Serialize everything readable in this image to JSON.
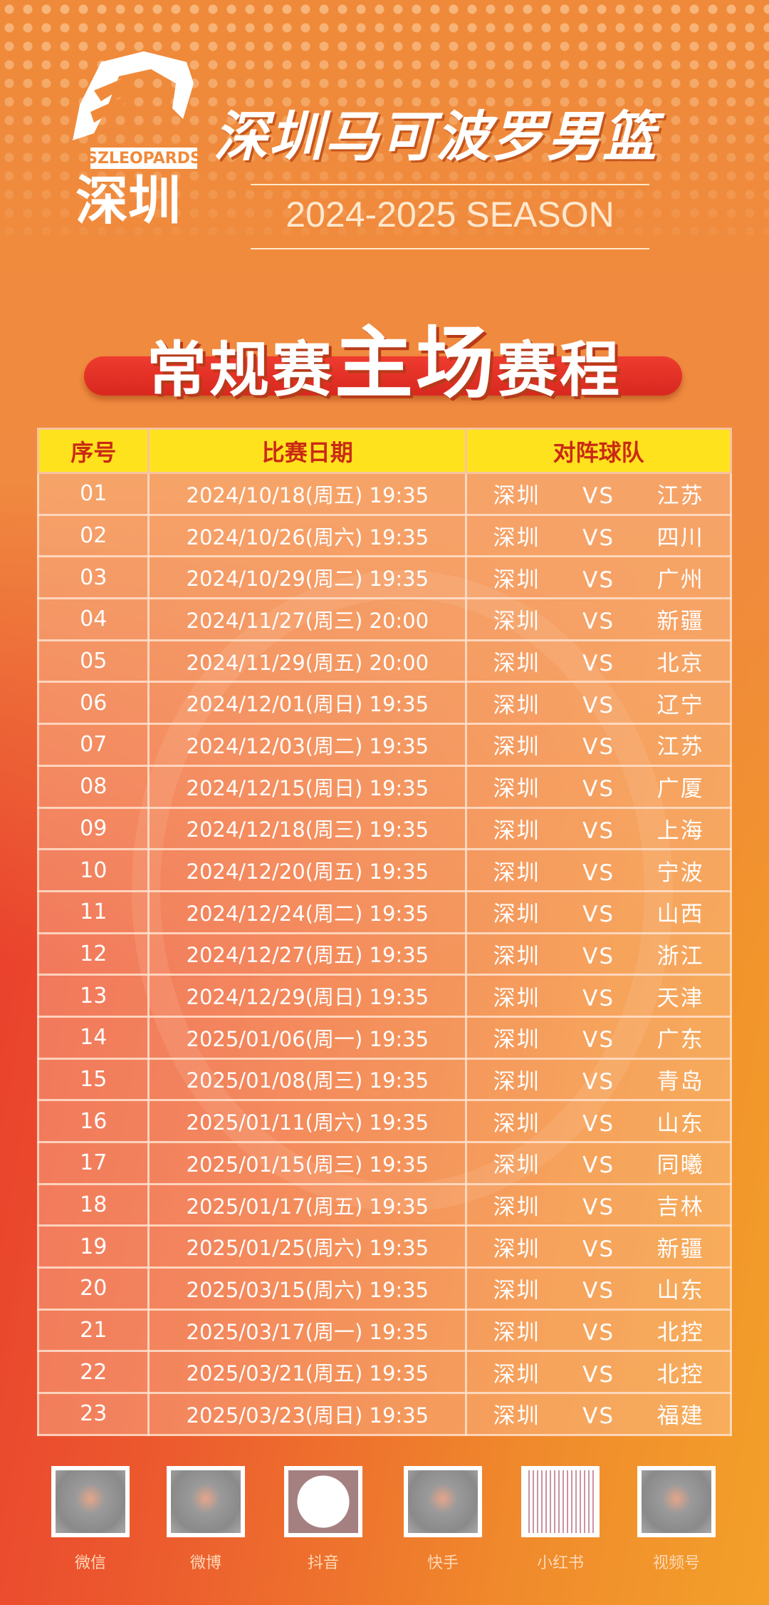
{
  "header": {
    "logo_text": "SZLEOPARDS",
    "logo_city": "深圳",
    "title": "深圳马可波罗男篮",
    "season": "2024-2025 SEASON"
  },
  "banner": {
    "part1": "常规赛",
    "part2": "主",
    "part3": "场",
    "part4": "赛程"
  },
  "table": {
    "headers": [
      "序号",
      "比赛日期",
      "对阵球队"
    ],
    "rows": [
      [
        "01",
        "2024/10/18(周五) 19:35",
        "深圳",
        "VS",
        "江苏"
      ],
      [
        "02",
        "2024/10/26(周六) 19:35",
        "深圳",
        "VS",
        "四川"
      ],
      [
        "03",
        "2024/10/29(周二) 19:35",
        "深圳",
        "VS",
        "广州"
      ],
      [
        "04",
        "2024/11/27(周三) 20:00",
        "深圳",
        "VS",
        "新疆"
      ],
      [
        "05",
        "2024/11/29(周五) 20:00",
        "深圳",
        "VS",
        "北京"
      ],
      [
        "06",
        "2024/12/01(周日) 19:35",
        "深圳",
        "VS",
        "辽宁"
      ],
      [
        "07",
        "2024/12/03(周二) 19:35",
        "深圳",
        "VS",
        "江苏"
      ],
      [
        "08",
        "2024/12/15(周日) 19:35",
        "深圳",
        "VS",
        "广厦"
      ],
      [
        "09",
        "2024/12/18(周三) 19:35",
        "深圳",
        "VS",
        "上海"
      ],
      [
        "10",
        "2024/12/20(周五) 19:35",
        "深圳",
        "VS",
        "宁波"
      ],
      [
        "11",
        "2024/12/24(周二) 19:35",
        "深圳",
        "VS",
        "山西"
      ],
      [
        "12",
        "2024/12/27(周五) 19:35",
        "深圳",
        "VS",
        "浙江"
      ],
      [
        "13",
        "2024/12/29(周日) 19:35",
        "深圳",
        "VS",
        "天津"
      ],
      [
        "14",
        "2025/01/06(周一) 19:35",
        "深圳",
        "VS",
        "广东"
      ],
      [
        "15",
        "2025/01/08(周三) 19:35",
        "深圳",
        "VS",
        "青岛"
      ],
      [
        "16",
        "2025/01/11(周六) 19:35",
        "深圳",
        "VS",
        "山东"
      ],
      [
        "17",
        "2025/01/15(周三) 19:35",
        "深圳",
        "VS",
        "同曦"
      ],
      [
        "18",
        "2025/01/17(周五) 19:35",
        "深圳",
        "VS",
        "吉林"
      ],
      [
        "19",
        "2025/01/25(周六) 19:35",
        "深圳",
        "VS",
        "新疆"
      ],
      [
        "20",
        "2025/03/15(周六) 19:35",
        "深圳",
        "VS",
        "山东"
      ],
      [
        "21",
        "2025/03/17(周一) 19:35",
        "深圳",
        "VS",
        "北控"
      ],
      [
        "22",
        "2025/03/21(周五) 19:35",
        "深圳",
        "VS",
        "北控"
      ],
      [
        "23",
        "2025/03/23(周日) 19:35",
        "深圳",
        "VS",
        "福建"
      ]
    ]
  },
  "social": [
    {
      "label": "微信",
      "icon": "qr-code"
    },
    {
      "label": "微博",
      "icon": "qr-code"
    },
    {
      "label": "抖音",
      "icon": "qr-code"
    },
    {
      "label": "快手",
      "icon": "qr-code"
    },
    {
      "label": "小红书",
      "icon": "qr-code"
    },
    {
      "label": "视频号",
      "icon": "qr-code"
    }
  ],
  "colors": {
    "header_bg": "#ffe21e",
    "header_text": "#c92a14",
    "banner_bar": "#e3302a"
  }
}
